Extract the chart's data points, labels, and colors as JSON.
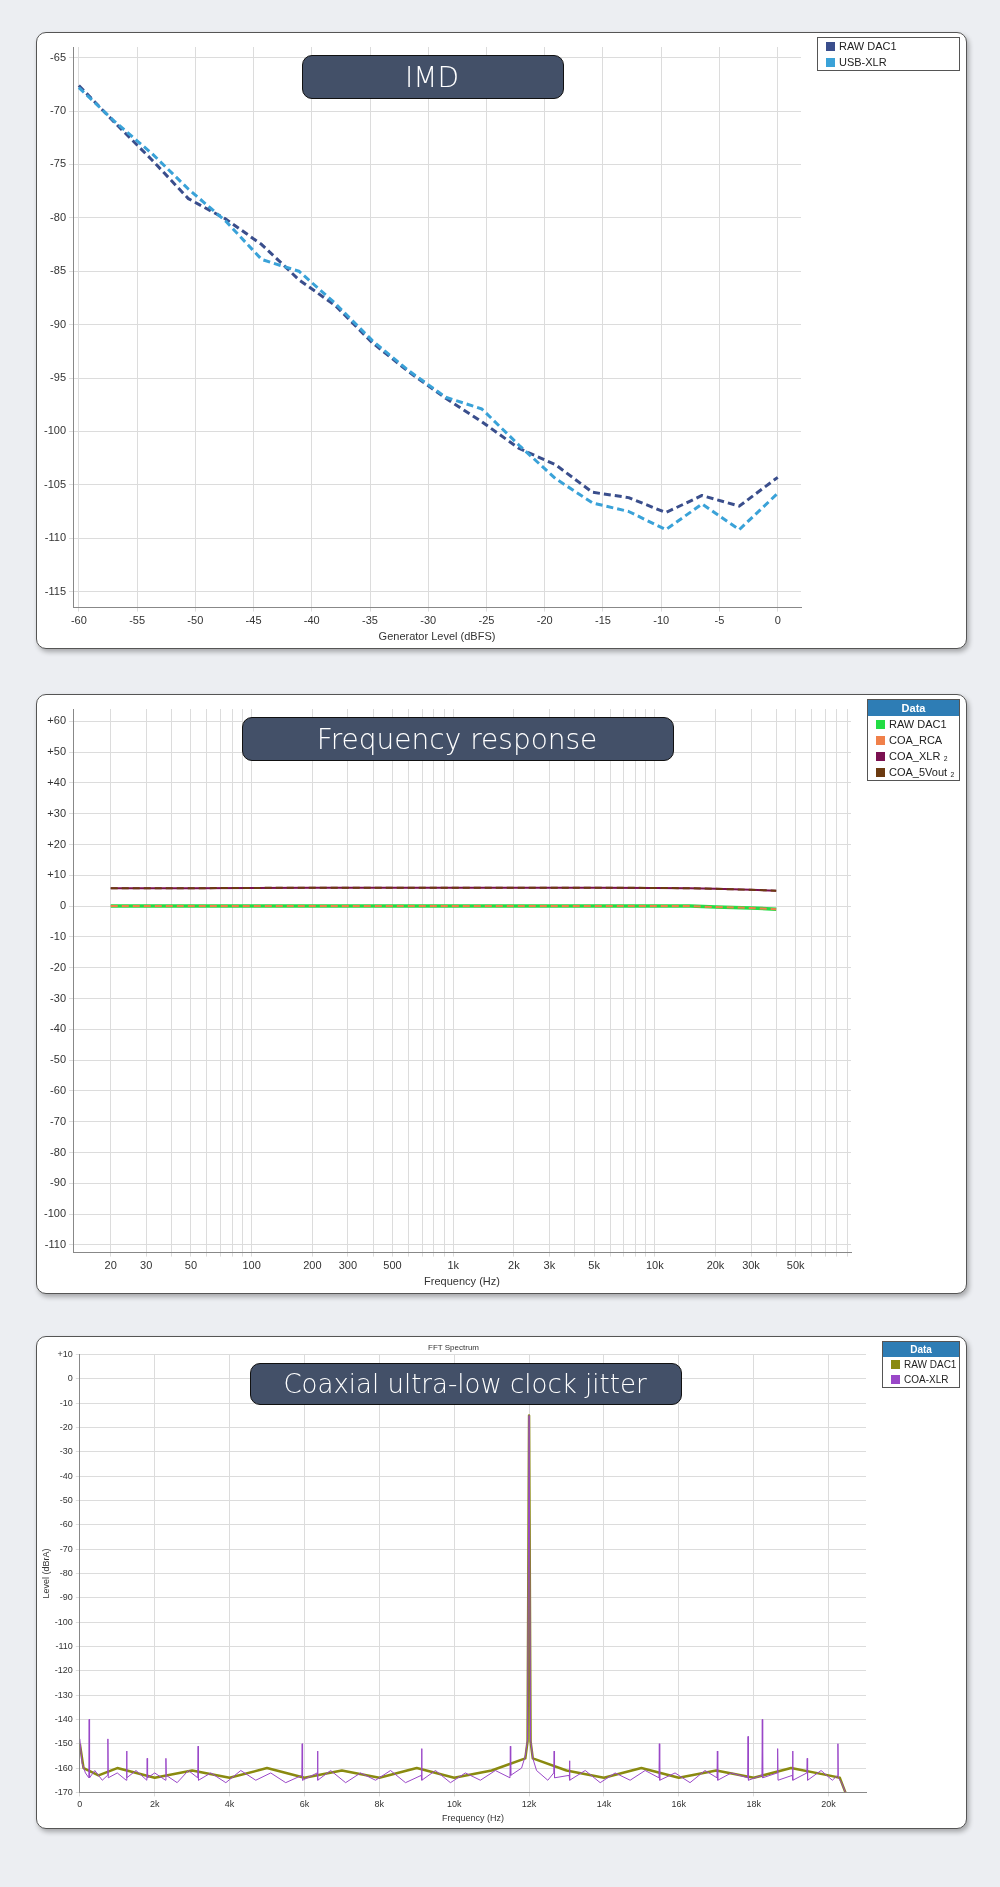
{
  "chart_data": [
    {
      "type": "line",
      "title": "IMD",
      "xlabel": "Generator Level (dBFS)",
      "xlim": [
        -60.5,
        2
      ],
      "ylim": [
        -116.5,
        -64
      ],
      "xticks": [
        -60,
        -55,
        -50,
        -45,
        -40,
        -35,
        -30,
        -25,
        -20,
        -15,
        -10,
        -5,
        0
      ],
      "yticks": [
        -115,
        -110,
        -105,
        -100,
        -95,
        -90,
        -85,
        -80,
        -75,
        -70,
        -65
      ],
      "grid": true,
      "legend": "top right",
      "line_style": "dashed",
      "marker": "none",
      "x": [
        -60,
        -56.9,
        -53.7,
        -50.6,
        -47.4,
        -44.3,
        -41.1,
        -38,
        -34.8,
        -31.7,
        -28.5,
        -25.4,
        -22.2,
        -19.1,
        -15.9,
        -12.8,
        -9.6,
        -6.5,
        -3.3,
        0
      ],
      "series": [
        {
          "name": "RAW DAC1",
          "color": "#3a4e8c",
          "values": [
            -67.6,
            -71.1,
            -74.6,
            -78.2,
            -80.1,
            -82.5,
            -85.8,
            -88.2,
            -91.7,
            -94.4,
            -96.9,
            -99.1,
            -101.6,
            -103.1,
            -105.7,
            -106.2,
            -107.6,
            -106.0,
            -107.0,
            -104.3
          ]
        },
        {
          "name": "USB-XLR",
          "color": "#3aa2d8",
          "values": [
            -67.8,
            -71.0,
            -74.0,
            -77.3,
            -80.3,
            -83.9,
            -85.0,
            -88.0,
            -91.5,
            -94.3,
            -96.8,
            -97.9,
            -101.3,
            -104.4,
            -106.7,
            -107.5,
            -109.2,
            -106.8,
            -109.2,
            -105.8
          ]
        }
      ]
    },
    {
      "type": "line",
      "title": "Frequency response",
      "xlabel": "Frequency (Hz)",
      "log": "x",
      "xlim": [
        13,
        94000
      ],
      "ylim": [
        -112.5,
        64
      ],
      "xticks": [
        {
          "value": 20,
          "label": "20"
        },
        {
          "value": 30,
          "label": "30"
        },
        {
          "value": 40,
          "label": null
        },
        {
          "value": 50,
          "label": "50"
        },
        {
          "value": 60,
          "label": null
        },
        {
          "value": 70,
          "label": null
        },
        {
          "value": 80,
          "label": null
        },
        {
          "value": 90,
          "label": null
        },
        {
          "value": 100,
          "label": "100"
        },
        {
          "value": 200,
          "label": "200"
        },
        {
          "value": 300,
          "label": "300"
        },
        {
          "value": 400,
          "label": null
        },
        {
          "value": 500,
          "label": "500"
        },
        {
          "value": 600,
          "label": null
        },
        {
          "value": 700,
          "label": null
        },
        {
          "value": 800,
          "label": null
        },
        {
          "value": 900,
          "label": null
        },
        {
          "value": 1000,
          "label": "1k"
        },
        {
          "value": 2000,
          "label": "2k"
        },
        {
          "value": 3000,
          "label": "3k"
        },
        {
          "value": 4000,
          "label": null
        },
        {
          "value": 5000,
          "label": "5k"
        },
        {
          "value": 6000,
          "label": null
        },
        {
          "value": 7000,
          "label": null
        },
        {
          "value": 8000,
          "label": null
        },
        {
          "value": 9000,
          "label": null
        },
        {
          "value": 10000,
          "label": "10k"
        },
        {
          "value": 20000,
          "label": "20k"
        },
        {
          "value": 30000,
          "label": "30k"
        },
        {
          "value": 40000,
          "label": null
        },
        {
          "value": 50000,
          "label": "50k"
        },
        {
          "value": 60000,
          "label": null
        },
        {
          "value": 70000,
          "label": null
        },
        {
          "value": 80000,
          "label": null
        },
        {
          "value": 90000,
          "label": null
        }
      ],
      "yticks": [
        -110,
        -100,
        -90,
        -80,
        -70,
        -60,
        -50,
        -40,
        -30,
        -20,
        -10,
        0,
        {
          "value": 10,
          "label": "+10"
        },
        {
          "value": 20,
          "label": "+20"
        },
        {
          "value": 30,
          "label": "+30"
        },
        {
          "value": 40,
          "label": "+40"
        },
        {
          "value": 50,
          "label": "+50"
        },
        {
          "value": 60,
          "label": "+60"
        }
      ],
      "grid": true,
      "legend": "top right",
      "legend_title": "Data",
      "marker": "none",
      "x": [
        20,
        50,
        100,
        200,
        500,
        1000,
        2000,
        5000,
        10000,
        15000,
        20000,
        30000,
        40000
      ],
      "series": [
        {
          "name": "RAW DAC1",
          "color": "#22dd44",
          "values": [
            0,
            0,
            0,
            0,
            0,
            0,
            0,
            0,
            0,
            0,
            -0.3,
            -0.6,
            -1
          ]
        },
        {
          "name": "COA_RCA",
          "color": "#f0804a",
          "line_style": "dashed",
          "values": [
            0,
            0,
            0,
            0,
            0,
            0,
            0,
            0,
            0,
            0,
            -0.3,
            -0.6,
            -1
          ]
        },
        {
          "name": "COA_XLR ₂",
          "color": "#7a1050",
          "values": [
            5.8,
            5.8,
            5.9,
            6,
            6,
            6,
            6,
            6,
            5.9,
            5.8,
            5.6,
            5.3,
            5
          ]
        },
        {
          "name": "COA_5Vout ₂",
          "color": "#6b3a10",
          "line_style": "dashed",
          "values": [
            5.8,
            5.8,
            5.9,
            6,
            6,
            6,
            6,
            6,
            5.9,
            5.8,
            5.6,
            5.3,
            5
          ]
        }
      ]
    },
    {
      "type": "line",
      "title": "Coaxial ultra-low clock jitter",
      "subtitle": "FFT Spectrum",
      "xlabel": "Frequency (Hz)",
      "ylabel": "Level (dBrA)",
      "xlim": [
        0,
        21000
      ],
      "ylim": [
        -170,
        10
      ],
      "xticks": [
        0,
        {
          "value": 2000,
          "label": "2k"
        },
        {
          "value": 4000,
          "label": "4k"
        },
        {
          "value": 6000,
          "label": "6k"
        },
        {
          "value": 8000,
          "label": "8k"
        },
        {
          "value": 10000,
          "label": "10k"
        },
        {
          "value": 12000,
          "label": "12k"
        },
        {
          "value": 14000,
          "label": "14k"
        },
        {
          "value": 16000,
          "label": "16k"
        },
        {
          "value": 18000,
          "label": "18k"
        },
        {
          "value": 20000,
          "label": "20k"
        }
      ],
      "yticks": [
        -170,
        -160,
        -150,
        -140,
        -130,
        -120,
        -110,
        -100,
        -90,
        -80,
        -70,
        -60,
        -50,
        -40,
        -30,
        -20,
        -10,
        0,
        {
          "value": 10,
          "label": "+10"
        }
      ],
      "grid": true,
      "legend": "top right",
      "legend_title": "Data",
      "marker": "none",
      "series": [
        {
          "name": "RAW DAC1",
          "color": "#8a8a10",
          "x": [
            0,
            100,
            500,
            1000,
            2000,
            3000,
            4000,
            5000,
            6000,
            7000,
            8000,
            9000,
            10000,
            11000,
            11900,
            11960,
            12000,
            12040,
            12100,
            13000,
            14000,
            15000,
            16000,
            17000,
            18000,
            19000,
            20000,
            20300,
            20450
          ],
          "values": [
            -150,
            -160,
            -163,
            -160,
            -164,
            -161,
            -164,
            -160,
            -164,
            -161,
            -164,
            -160,
            -164,
            -161,
            -156,
            -149,
            -15,
            -149,
            -156,
            -161,
            -164,
            -160,
            -164,
            -161,
            -164,
            -160,
            -163,
            -164,
            -170
          ]
        },
        {
          "name": "COA-XLR",
          "color": "#9a48c8",
          "x": [
            0,
            60,
            150,
            240,
            250,
            260,
            400,
            600,
            740,
            750,
            760,
            1000,
            1240,
            1250,
            1260,
            1500,
            1790,
            1800,
            1810,
            2000,
            2290,
            2300,
            2310,
            2600,
            2900,
            3150,
            3160,
            3170,
            3500,
            3900,
            4300,
            4700,
            5100,
            5500,
            5930,
            5940,
            5950,
            6340,
            6350,
            6360,
            6700,
            7100,
            7500,
            7900,
            8300,
            8700,
            9120,
            9130,
            9140,
            9500,
            9900,
            10300,
            10700,
            11100,
            11490,
            11500,
            11510,
            11800,
            11900,
            11960,
            12000,
            12040,
            12100,
            12200,
            12500,
            12660,
            12670,
            12680,
            13070,
            13080,
            13090,
            13500,
            13900,
            14300,
            14700,
            15100,
            15470,
            15480,
            15490,
            15900,
            16300,
            16700,
            17020,
            17030,
            17040,
            17400,
            17840,
            17850,
            17860,
            18220,
            18230,
            18240,
            18630,
            18640,
            18650,
            19030,
            19040,
            19050,
            19420,
            19430,
            19440,
            19800,
            20100,
            20240,
            20250,
            20260,
            20350,
            20450
          ],
          "values": [
            -148,
            -158,
            -162,
            -164,
            -140,
            -164,
            -161,
            -165,
            -163,
            -148,
            -164,
            -162,
            -165,
            -153,
            -164,
            -161,
            -165,
            -156,
            -164,
            -162,
            -165,
            -156,
            -163,
            -166,
            -161,
            -164,
            -151,
            -165,
            -162,
            -166,
            -161,
            -165,
            -162,
            -166,
            -163,
            -150,
            -165,
            -162,
            -153,
            -165,
            -161,
            -166,
            -162,
            -165,
            -161,
            -166,
            -163,
            -152,
            -165,
            -161,
            -166,
            -162,
            -165,
            -161,
            -164,
            -151,
            -163,
            -160,
            -155,
            -148,
            -15,
            -148,
            -156,
            -161,
            -165,
            -162,
            -153,
            -164,
            -163,
            -157,
            -165,
            -161,
            -166,
            -162,
            -165,
            -161,
            -164,
            -150,
            -165,
            -162,
            -166,
            -161,
            -164,
            -153,
            -165,
            -162,
            -164,
            -147,
            -165,
            -163,
            -140,
            -164,
            -162,
            -152,
            -165,
            -163,
            -153,
            -165,
            -162,
            -156,
            -165,
            -161,
            -165,
            -163,
            -150,
            -164,
            -166,
            -170
          ]
        }
      ]
    }
  ]
}
